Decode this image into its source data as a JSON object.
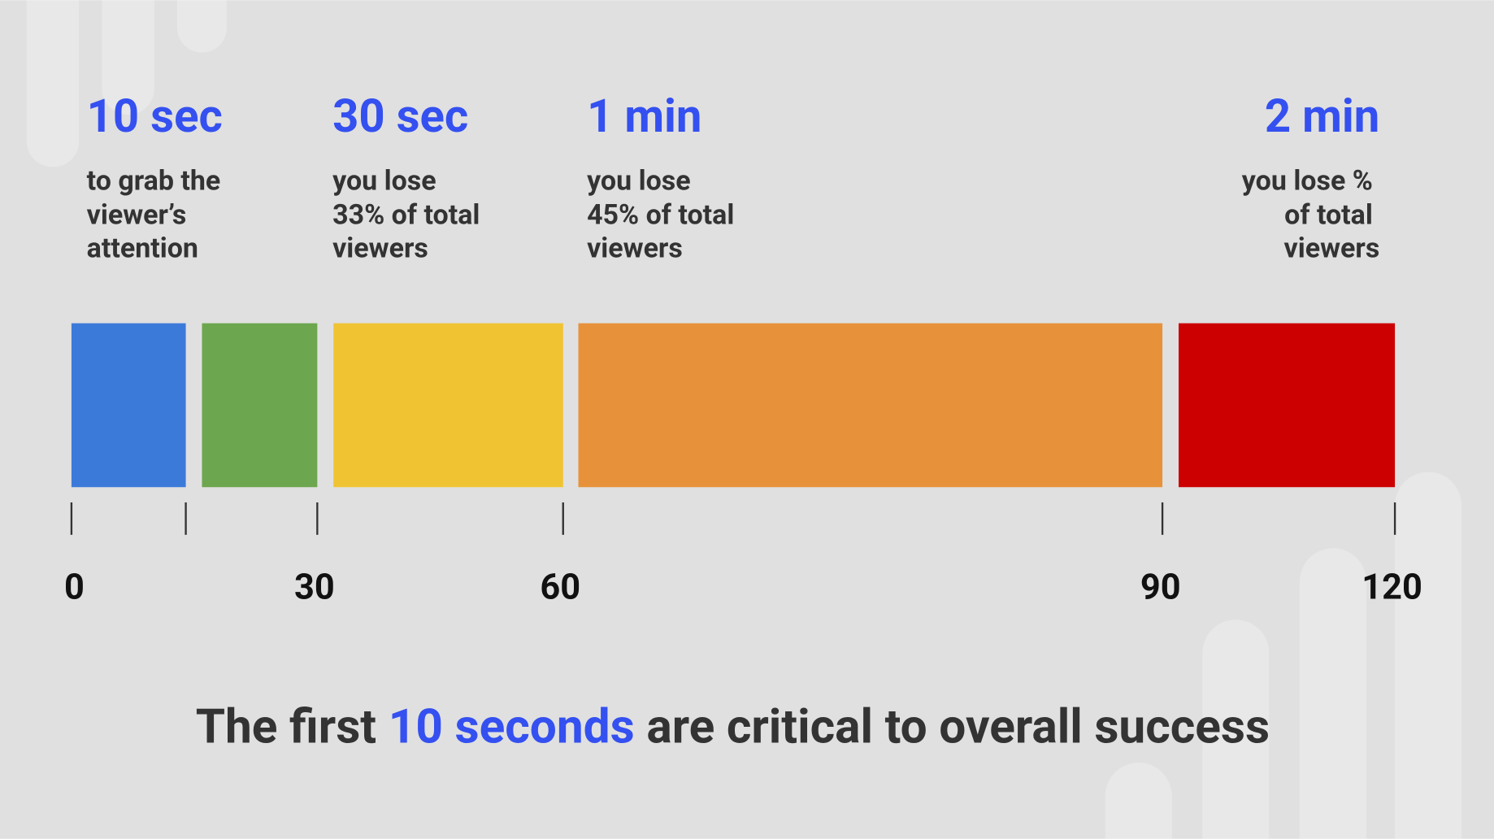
{
  "milestones": [
    {
      "time": "10 sec",
      "lines": [
        "to grab the",
        "viewer’s",
        "attention"
      ]
    },
    {
      "time": "30 sec",
      "lines": [
        "you lose",
        "33% of total",
        "viewers"
      ]
    },
    {
      "time": "1 min",
      "lines": [
        "you lose",
        "45% of total",
        "viewers"
      ]
    },
    {
      "time": "2 min",
      "lines": [
        "you lose %",
        "of total",
        "viewers"
      ]
    }
  ],
  "axis_labels": [
    "0",
    "30",
    "60",
    "90",
    "120"
  ],
  "footer": {
    "before": "The first ",
    "highlight": "10 seconds",
    "after": " are critical to overall success"
  }
}
